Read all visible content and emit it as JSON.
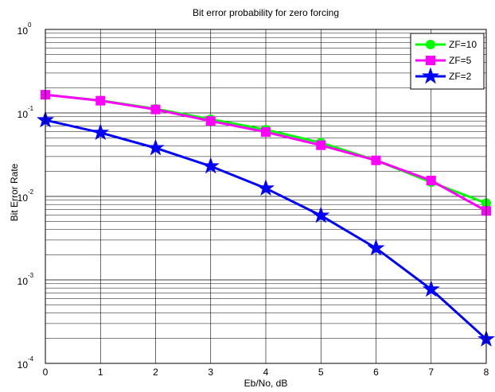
{
  "chart_data": {
    "type": "line",
    "title": "Bit error probability for zero forcing",
    "xlabel": "Eb/No, dB",
    "ylabel": "Bit Error Rate",
    "xlim": [
      0,
      8
    ],
    "ylim": [
      0.0001,
      1
    ],
    "yscale": "log",
    "grid": true,
    "legend_position": "top-right",
    "x": [
      0,
      1,
      2,
      3,
      4,
      5,
      6,
      7,
      8
    ],
    "x_ticks": [
      "0",
      "1",
      "2",
      "3",
      "4",
      "5",
      "6",
      "7",
      "8"
    ],
    "y_ticks": [
      {
        "base": "10",
        "exp": "-4",
        "value": 0.0001
      },
      {
        "base": "10",
        "exp": "-3",
        "value": 0.001
      },
      {
        "base": "10",
        "exp": "-2",
        "value": 0.01
      },
      {
        "base": "10",
        "exp": "-1",
        "value": 0.1
      },
      {
        "base": "10",
        "exp": "0",
        "value": 1
      }
    ],
    "series": [
      {
        "name": "ZF=10",
        "color": "#00ff00",
        "marker": "circle",
        "values": [
          0.165,
          0.141,
          0.112,
          0.084,
          0.063,
          0.044,
          0.027,
          0.0148,
          0.0083
        ]
      },
      {
        "name": "ZF=5",
        "color": "#ff00ff",
        "marker": "square",
        "values": [
          0.165,
          0.14,
          0.11,
          0.08,
          0.059,
          0.041,
          0.027,
          0.0155,
          0.0067
        ]
      },
      {
        "name": "ZF=2",
        "color": "#0000ff",
        "marker": "star",
        "values": [
          0.082,
          0.058,
          0.038,
          0.023,
          0.0125,
          0.0059,
          0.0024,
          0.00077,
          0.000195
        ]
      }
    ]
  }
}
